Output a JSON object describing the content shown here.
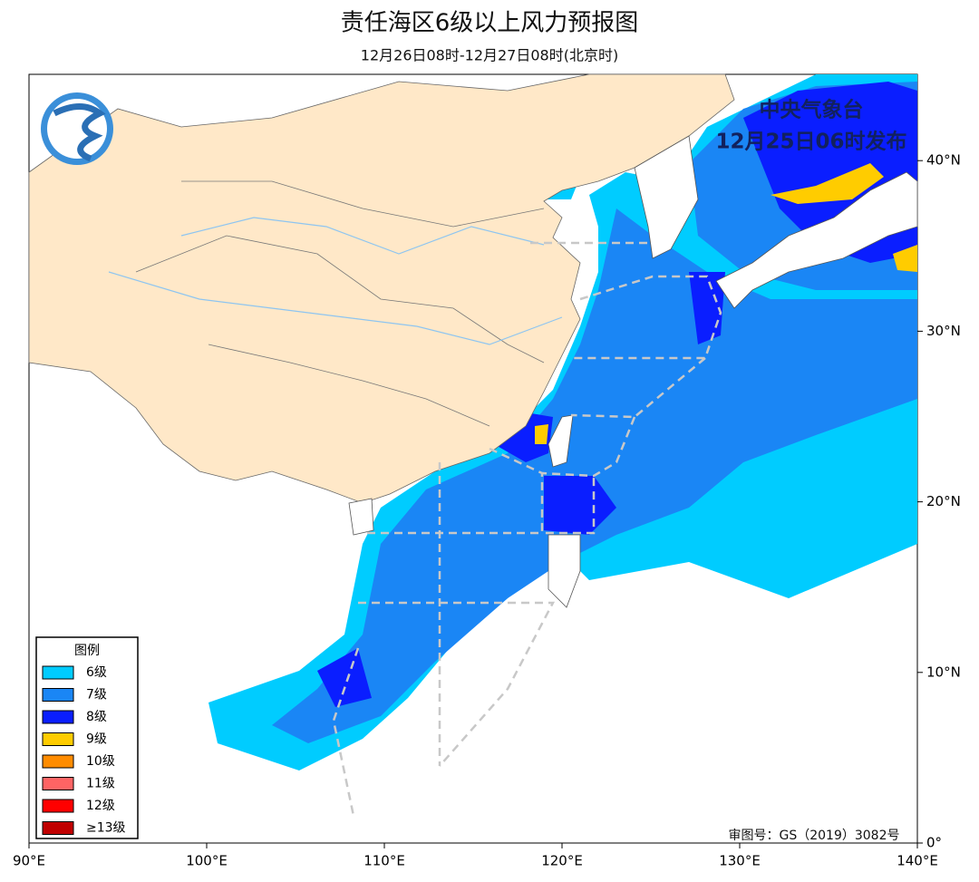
{
  "header": {
    "title": "责任海区6级以上风力预报图",
    "subtitle": "12月26日08时-12月27日08时(北京时)"
  },
  "issuer": {
    "agency": "中央气象台",
    "issued": "12月25日06时发布"
  },
  "legend": {
    "title": "图例",
    "items": [
      {
        "label": "6级",
        "color": "#00ccff"
      },
      {
        "label": "7级",
        "color": "#1a86f5"
      },
      {
        "label": "8级",
        "color": "#0a1eff"
      },
      {
        "label": "9级",
        "color": "#ffcc00"
      },
      {
        "label": "10级",
        "color": "#ff8c00"
      },
      {
        "label": "11级",
        "color": "#ff6464"
      },
      {
        "label": "12级",
        "color": "#ff0000"
      },
      {
        "label": "≥13级",
        "color": "#c00000"
      }
    ]
  },
  "lon_ticks": [
    {
      "value": 90,
      "label": "90°E"
    },
    {
      "value": 100,
      "label": "100°E"
    },
    {
      "value": 110,
      "label": "110°E"
    },
    {
      "value": 120,
      "label": "120°E"
    },
    {
      "value": 130,
      "label": "130°E"
    },
    {
      "value": 140,
      "label": "140°E"
    }
  ],
  "lat_ticks": [
    {
      "value": 0,
      "label": "0°"
    },
    {
      "value": 10,
      "label": "10°N"
    },
    {
      "value": 20,
      "label": "20°N"
    },
    {
      "value": 30,
      "label": "30°N"
    },
    {
      "value": 40,
      "label": "40°N"
    }
  ],
  "review_no": "审图号：GS（2019）3082号"
}
